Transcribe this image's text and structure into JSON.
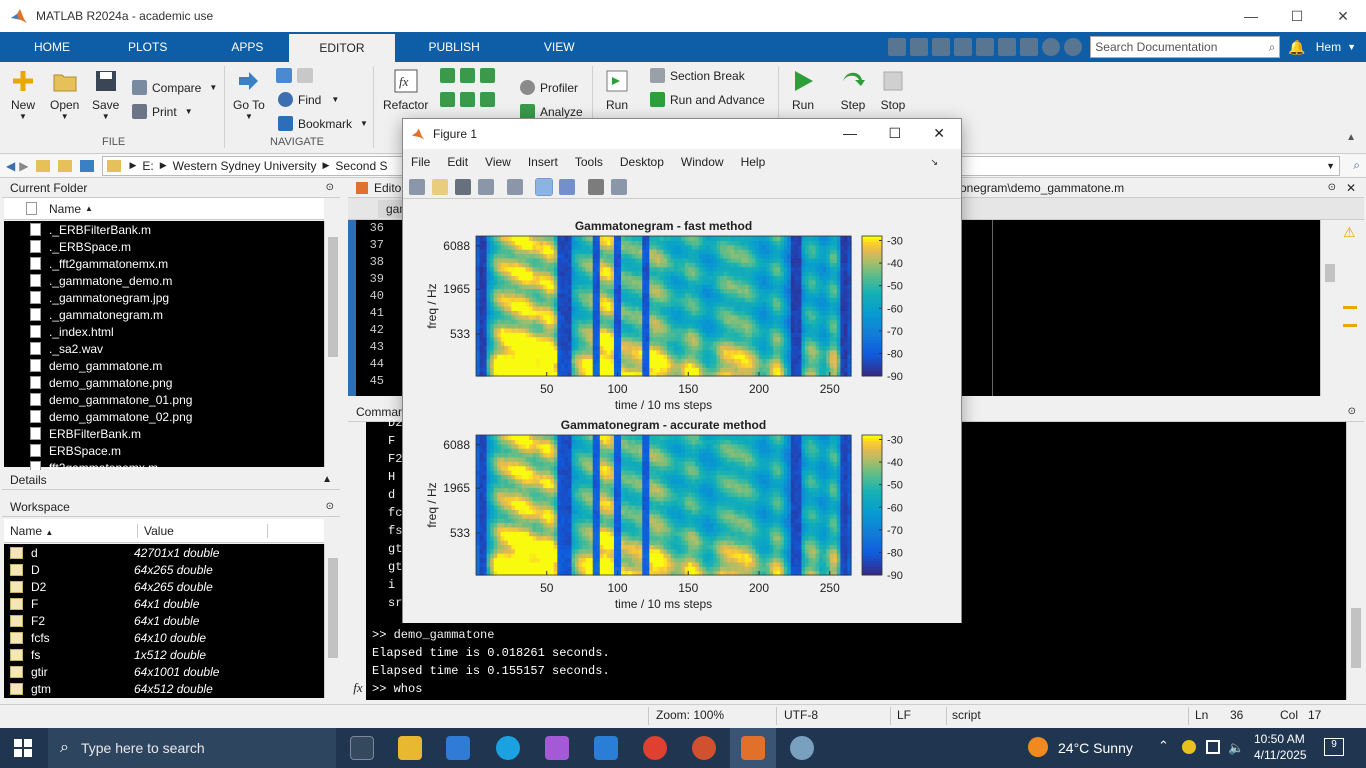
{
  "window": {
    "title": "MATLAB R2024a - academic use",
    "min": "—",
    "max": "☐",
    "close": "✕"
  },
  "tabs": [
    "HOME",
    "PLOTS",
    "APPS",
    "EDITOR",
    "PUBLISH",
    "VIEW"
  ],
  "search_placeholder": "Search Documentation",
  "user": "Hem",
  "ribbon": {
    "new": "New",
    "open": "Open",
    "save": "Save",
    "compare": "Compare",
    "print": "Print",
    "file_section": "FILE",
    "goto": "Go To",
    "find": "Find",
    "bookmark": "Bookmark",
    "navigate_section": "NAVIGATE",
    "refactor": "Refactor",
    "profiler": "Profiler",
    "analyze": "Analyze",
    "run_section_label": "Run",
    "section_break": "Section Break",
    "run_and_advance": "Run and Advance",
    "run": "Run",
    "step": "Step",
    "stop": "Stop"
  },
  "address": {
    "drive": "E:",
    "folder1": "Western Sydney University",
    "folder2": "Second S",
    "path_tail": "onegram\\demo_gammatone.m"
  },
  "current_folder": {
    "title": "Current Folder",
    "col_name": "Name",
    "files": [
      "._ERBFilterBank.m",
      "._ERBSpace.m",
      "._fft2gammatonemx.m",
      "._gammatone_demo.m",
      "._gammatonegram.jpg",
      "._gammatonegram.m",
      "._index.html",
      "._sa2.wav",
      "demo_gammatone.m",
      "demo_gammatone.png",
      "demo_gammatone_01.png",
      "demo_gammatone_02.png",
      "ERBFilterBank.m",
      "ERBSpace.m",
      "fft2gammatonemx.m"
    ]
  },
  "details": {
    "title": "Details"
  },
  "workspace": {
    "title": "Workspace",
    "col_name": "Name",
    "col_value": "Value",
    "vars": [
      {
        "name": "d",
        "value": "42701x1 double"
      },
      {
        "name": "D",
        "value": "64x265 double"
      },
      {
        "name": "D2",
        "value": "64x265 double"
      },
      {
        "name": "F",
        "value": "64x1 double"
      },
      {
        "name": "F2",
        "value": "64x1 double"
      },
      {
        "name": "fcfs",
        "value": "64x10 double"
      },
      {
        "name": "fs",
        "value": "1x512 double"
      },
      {
        "name": "gtir",
        "value": "64x1001 double"
      },
      {
        "name": "gtm",
        "value": "64x512 double"
      }
    ]
  },
  "editor": {
    "title": "Editor",
    "tab": "gam",
    "lines": [
      "36",
      "37",
      "38",
      "39",
      "40",
      "41",
      "42",
      "43",
      "44",
      "45"
    ]
  },
  "command": {
    "title": "Comman",
    "cut_lines": [
      "D2",
      "F",
      "F2",
      "H",
      "d",
      "fc",
      "fs",
      "gt",
      "gt",
      "i",
      "sr"
    ],
    "lines": [
      ">> demo_gammatone",
      "Elapsed time is 0.018261 seconds.",
      "Elapsed time is 0.155157 seconds.",
      ">> whos"
    ],
    "fx": "fx"
  },
  "status": {
    "zoom": "Zoom: 100%",
    "enc": "UTF-8",
    "eol": "LF",
    "type": "script",
    "ln_label": "Ln",
    "ln": "36",
    "col_label": "Col",
    "col": "17"
  },
  "taskbar": {
    "search": "Type here to search",
    "weather": "24°C  Sunny",
    "time": "10:50 AM",
    "date": "4/11/2025",
    "notif": "9"
  },
  "figure": {
    "title": "Figure 1",
    "menu": [
      "File",
      "Edit",
      "View",
      "Insert",
      "Tools",
      "Desktop",
      "Window",
      "Help"
    ]
  },
  "chart_data": [
    {
      "type": "heatmap",
      "title": "Gammatonegram - fast method",
      "xlabel": "time / 10 ms steps",
      "ylabel": "freq / Hz",
      "x_ticks": [
        50,
        100,
        150,
        200,
        250
      ],
      "xlim": [
        0,
        265
      ],
      "y_ticks": [
        "6088",
        "1965",
        "533"
      ],
      "colorbar_ticks": [
        -30,
        -40,
        -50,
        -60,
        -70,
        -80,
        -90
      ],
      "colorbar_range": [
        -90,
        -28
      ]
    },
    {
      "type": "heatmap",
      "title": "Gammatonegram - accurate method",
      "xlabel": "time / 10 ms steps",
      "ylabel": "freq / Hz",
      "x_ticks": [
        50,
        100,
        150,
        200,
        250
      ],
      "xlim": [
        0,
        265
      ],
      "y_ticks": [
        "6088",
        "1965",
        "533"
      ],
      "colorbar_ticks": [
        -30,
        -40,
        -50,
        -60,
        -70,
        -80,
        -90
      ],
      "colorbar_range": [
        -90,
        -28
      ]
    }
  ]
}
